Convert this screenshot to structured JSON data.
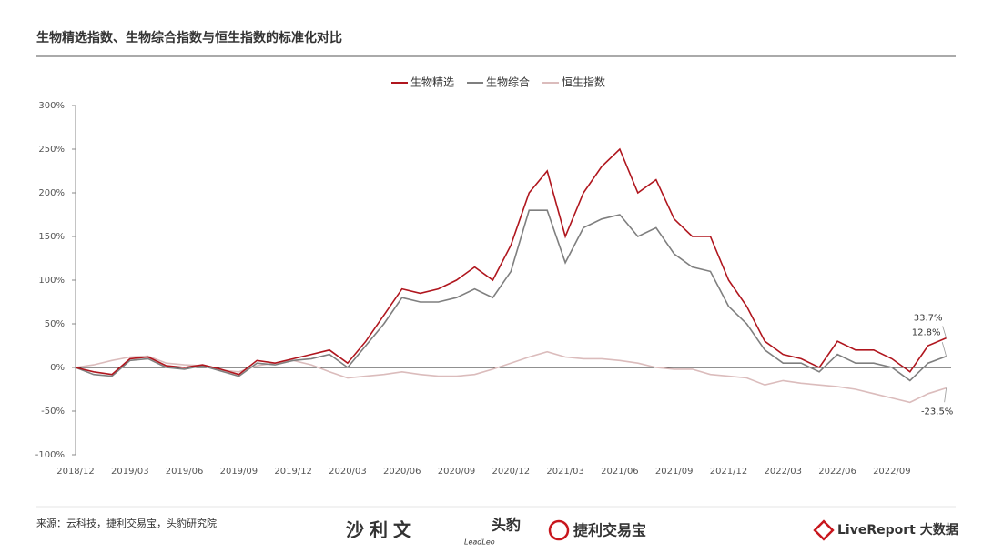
{
  "chart_data": {
    "type": "line",
    "title": "生物精选指数、生物综合指数与恒生指数的标准化对比",
    "x": [
      "2018/12",
      "2019/01",
      "2019/02",
      "2019/03",
      "2019/04",
      "2019/05",
      "2019/06",
      "2019/07",
      "2019/08",
      "2019/09",
      "2019/10",
      "2019/11",
      "2019/12",
      "2020/01",
      "2020/02",
      "2020/03",
      "2020/04",
      "2020/05",
      "2020/06",
      "2020/07",
      "2020/08",
      "2020/09",
      "2020/10",
      "2020/11",
      "2020/12",
      "2021/01",
      "2021/02",
      "2021/03",
      "2021/04",
      "2021/05",
      "2021/06",
      "2021/07",
      "2021/08",
      "2021/09",
      "2021/10",
      "2021/11",
      "2021/12",
      "2022/01",
      "2022/02",
      "2022/03",
      "2022/04",
      "2022/05",
      "2022/06",
      "2022/07",
      "2022/08",
      "2022/09",
      "2022/10",
      "2022/11",
      "2022/12"
    ],
    "xticks": [
      "2018/12",
      "2019/03",
      "2019/06",
      "2019/09",
      "2019/12",
      "2020/03",
      "2020/06",
      "2020/09",
      "2020/12",
      "2021/03",
      "2021/06",
      "2021/09",
      "2021/12",
      "2022/03",
      "2022/06",
      "2022/09"
    ],
    "series": [
      {
        "name": "生物精选",
        "color": "#b0161e",
        "values": [
          0,
          -5,
          -8,
          10,
          12,
          2,
          0,
          3,
          -2,
          -8,
          8,
          5,
          10,
          15,
          20,
          5,
          30,
          60,
          90,
          85,
          90,
          100,
          115,
          100,
          140,
          200,
          225,
          150,
          200,
          230,
          250,
          200,
          215,
          170,
          150,
          150,
          100,
          70,
          30,
          15,
          10,
          0,
          30,
          20,
          20,
          10,
          -5,
          25,
          33.7
        ]
      },
      {
        "name": "生物综合",
        "color": "#7f7f7f",
        "values": [
          0,
          -8,
          -10,
          8,
          10,
          0,
          -2,
          2,
          -4,
          -10,
          5,
          3,
          8,
          10,
          15,
          0,
          25,
          50,
          80,
          75,
          75,
          80,
          90,
          80,
          110,
          180,
          180,
          120,
          160,
          170,
          175,
          150,
          160,
          130,
          115,
          110,
          70,
          50,
          20,
          5,
          5,
          -5,
          15,
          5,
          5,
          0,
          -15,
          5,
          12.8
        ]
      },
      {
        "name": "恒生指数",
        "color": "#dbbcbc",
        "values": [
          0,
          3,
          8,
          12,
          13,
          5,
          3,
          2,
          -3,
          -5,
          2,
          5,
          8,
          3,
          -5,
          -12,
          -10,
          -8,
          -5,
          -8,
          -10,
          -10,
          -8,
          -2,
          5,
          12,
          18,
          12,
          10,
          10,
          8,
          5,
          0,
          -2,
          -2,
          -8,
          -10,
          -12,
          -20,
          -15,
          -18,
          -20,
          -22,
          -25,
          -30,
          -35,
          -40,
          -30,
          -23.5
        ]
      }
    ],
    "annotations": [
      {
        "text": "33.7%",
        "x": "2022/12",
        "y": 33.7
      },
      {
        "text": "12.8%",
        "x": "2022/12",
        "y": 12.8
      },
      {
        "text": "-23.5%",
        "x": "2022/12",
        "y": -23.5
      }
    ],
    "ylim": [
      -100,
      300
    ],
    "yticks": [
      {
        "value": -100,
        "label": "-100%"
      },
      {
        "value": -50,
        "label": "-50%"
      },
      {
        "value": 0,
        "label": "0%"
      },
      {
        "value": 50,
        "label": "50%"
      },
      {
        "value": 100,
        "label": "100%"
      },
      {
        "value": 150,
        "label": "150%"
      },
      {
        "value": 200,
        "label": "200%"
      },
      {
        "value": 250,
        "label": "250%"
      },
      {
        "value": 300,
        "label": "300%"
      }
    ],
    "grid": false,
    "legend": "top"
  },
  "footer": {
    "source": "来源：云科技，捷利交易宝，头豹研究院",
    "logos": [
      "沙利文",
      "头豹",
      "LeadLeo",
      "捷利交易宝",
      "LiveReport 大数据"
    ]
  }
}
